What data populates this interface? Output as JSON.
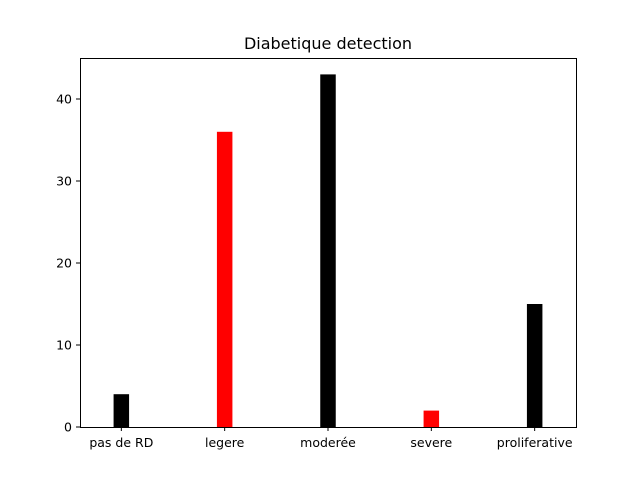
{
  "chart_data": {
    "type": "bar",
    "title": "Diabetique detection",
    "xlabel": "",
    "ylabel": "",
    "categories": [
      "pas de RD",
      "legere",
      "moderée",
      "severe",
      "proliferative"
    ],
    "values": [
      4,
      36,
      43,
      2,
      15
    ],
    "bar_colors": [
      "#000000",
      "#ff0000",
      "#000000",
      "#ff0000",
      "#000000"
    ],
    "ylim": [
      0,
      45
    ],
    "yticks": [
      0,
      10,
      20,
      30,
      40
    ],
    "grid": false,
    "legend": "none"
  }
}
